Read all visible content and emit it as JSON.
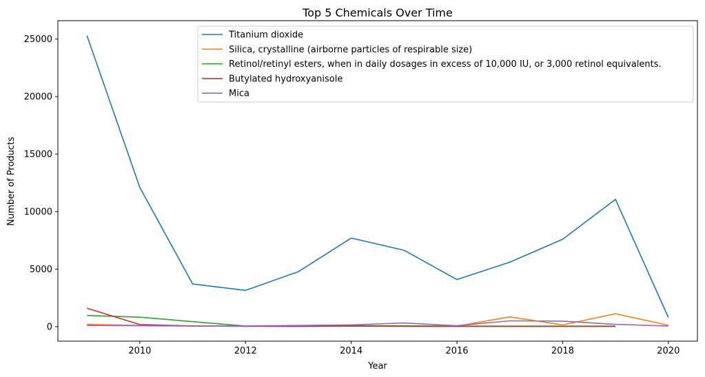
{
  "chart_data": {
    "type": "line",
    "title": "Top 5 Chemicals Over Time",
    "xlabel": "Year",
    "ylabel": "Number of Products",
    "x": [
      2009,
      2010,
      2011,
      2012,
      2013,
      2014,
      2015,
      2016,
      2017,
      2018,
      2019,
      2020
    ],
    "xlim": [
      2008.45,
      2020.55
    ],
    "ylim": [
      -1265,
      26600
    ],
    "x_ticks": [
      2010,
      2012,
      2014,
      2016,
      2018,
      2020
    ],
    "y_ticks": [
      0,
      5000,
      10000,
      15000,
      20000,
      25000
    ],
    "grid": false,
    "legend_position": "top-right",
    "series": [
      {
        "name": "Titanium dioxide",
        "color": "#1f77b4",
        "values": [
          25300,
          12100,
          3700,
          3150,
          4780,
          7700,
          6640,
          4090,
          5600,
          7600,
          11060,
          800
        ]
      },
      {
        "name": "Silica, crystalline (airborne particles of respirable size)",
        "color": "#ff7f0e",
        "values": [
          200,
          100,
          60,
          40,
          40,
          80,
          60,
          40,
          850,
          150,
          1120,
          120
        ]
      },
      {
        "name": "Retinol/retinyl esters, when in daily dosages in excess of 10,000 IU, or 3,000 retinol equivalents.",
        "color": "#2ca02c",
        "values": [
          970,
          820,
          430,
          50,
          40,
          80,
          60,
          40,
          40,
          40,
          40,
          null
        ]
      },
      {
        "name": "Butylated hydroxyanisole",
        "color": "#d62728",
        "values": [
          1600,
          180,
          60,
          30,
          20,
          40,
          30,
          20,
          20,
          20,
          20,
          null
        ]
      },
      {
        "name": "Mica",
        "color": "#9467bd",
        "values": [
          100,
          80,
          50,
          60,
          100,
          150,
          320,
          80,
          500,
          480,
          200,
          50
        ]
      }
    ]
  }
}
